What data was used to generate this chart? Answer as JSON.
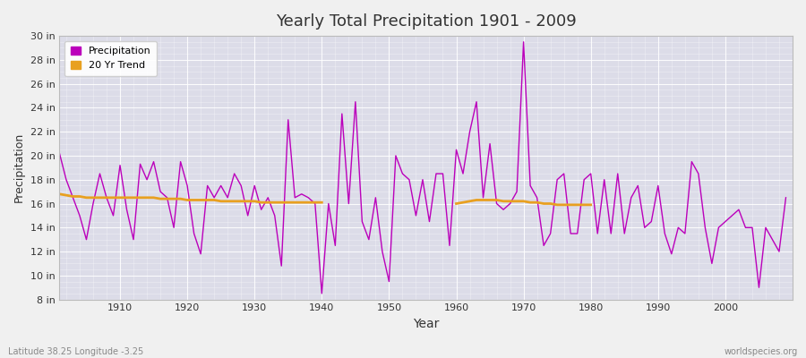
{
  "title": "Yearly Total Precipitation 1901 - 2009",
  "xlabel": "Year",
  "ylabel": "Precipitation",
  "footnote_left": "Latitude 38.25 Longitude -3.25",
  "footnote_right": "worldspecies.org",
  "ylim": [
    8,
    30
  ],
  "yticks": [
    8,
    10,
    12,
    14,
    16,
    18,
    20,
    22,
    24,
    26,
    28,
    30
  ],
  "ytick_labels": [
    "8 in",
    "10 in",
    "12 in",
    "14 in",
    "16 in",
    "18 in",
    "20 in",
    "22 in",
    "24 in",
    "26 in",
    "28 in",
    "30 in"
  ],
  "xlim": [
    1901,
    2010
  ],
  "xticks": [
    1910,
    1920,
    1930,
    1940,
    1950,
    1960,
    1970,
    1980,
    1990,
    2000
  ],
  "fig_bg_color": "#f0f0f0",
  "plot_bg_color": "#dcdce8",
  "precip_color": "#bb00bb",
  "trend_color": "#e8a020",
  "precip_linewidth": 1.0,
  "trend_linewidth": 2.0,
  "years": [
    1901,
    1902,
    1903,
    1904,
    1905,
    1906,
    1907,
    1908,
    1909,
    1910,
    1911,
    1912,
    1913,
    1914,
    1915,
    1916,
    1917,
    1918,
    1919,
    1920,
    1921,
    1922,
    1923,
    1924,
    1925,
    1926,
    1927,
    1928,
    1929,
    1930,
    1931,
    1932,
    1933,
    1934,
    1935,
    1936,
    1937,
    1938,
    1939,
    1940,
    1941,
    1942,
    1943,
    1944,
    1945,
    1946,
    1947,
    1948,
    1949,
    1950,
    1951,
    1952,
    1953,
    1954,
    1955,
    1956,
    1957,
    1958,
    1959,
    1960,
    1961,
    1962,
    1963,
    1964,
    1965,
    1966,
    1967,
    1968,
    1969,
    1970,
    1971,
    1972,
    1973,
    1974,
    1975,
    1976,
    1977,
    1978,
    1979,
    1980,
    1981,
    1982,
    1983,
    1984,
    1985,
    1986,
    1987,
    1988,
    1989,
    1990,
    1991,
    1992,
    1993,
    1994,
    1995,
    1996,
    1997,
    1998,
    1999,
    2000,
    2001,
    2002,
    2003,
    2004,
    2005,
    2006,
    2007,
    2008,
    2009
  ],
  "precip": [
    20.2,
    18.0,
    16.5,
    15.0,
    13.0,
    16.0,
    18.5,
    16.5,
    15.0,
    19.2,
    15.5,
    13.0,
    19.3,
    18.0,
    19.5,
    17.0,
    16.5,
    14.0,
    19.5,
    17.5,
    13.5,
    11.8,
    17.5,
    16.5,
    17.5,
    16.5,
    18.5,
    17.5,
    15.0,
    17.5,
    15.5,
    16.5,
    15.0,
    10.8,
    23.0,
    16.5,
    16.8,
    16.5,
    16.0,
    8.5,
    16.0,
    12.5,
    23.5,
    16.0,
    24.5,
    14.5,
    13.0,
    16.5,
    12.0,
    9.5,
    20.0,
    18.5,
    18.0,
    15.0,
    18.0,
    14.5,
    18.5,
    18.5,
    12.5,
    20.5,
    18.5,
    22.0,
    24.5,
    16.5,
    21.0,
    16.0,
    15.5,
    16.0,
    17.0,
    29.5,
    17.5,
    16.5,
    12.5,
    13.5,
    18.0,
    18.5,
    13.5,
    13.5,
    18.0,
    18.5,
    13.5,
    18.0,
    13.5,
    18.5,
    13.5,
    16.5,
    17.5,
    14.0,
    14.5,
    17.5,
    13.5,
    11.8,
    14.0,
    13.5,
    19.5,
    18.5,
    14.0,
    11.0,
    14.0,
    14.5,
    15.0,
    15.5,
    14.0,
    14.0,
    9.0,
    14.0,
    13.0,
    12.0,
    16.5
  ],
  "trend_segments": [
    {
      "years": [
        1901,
        1902,
        1903,
        1904,
        1905,
        1906,
        1907,
        1908,
        1909,
        1910,
        1911,
        1912,
        1913,
        1914,
        1915,
        1916,
        1917,
        1918,
        1919,
        1920,
        1921,
        1922,
        1923,
        1924,
        1925,
        1926,
        1927,
        1928,
        1929,
        1930,
        1931,
        1932,
        1933,
        1934,
        1935,
        1936,
        1937,
        1938,
        1939,
        1940
      ],
      "values": [
        16.8,
        16.7,
        16.6,
        16.6,
        16.5,
        16.5,
        16.5,
        16.5,
        16.5,
        16.5,
        16.5,
        16.5,
        16.5,
        16.5,
        16.5,
        16.4,
        16.4,
        16.4,
        16.4,
        16.3,
        16.3,
        16.3,
        16.3,
        16.3,
        16.2,
        16.2,
        16.2,
        16.2,
        16.2,
        16.2,
        16.1,
        16.1,
        16.1,
        16.1,
        16.1,
        16.1,
        16.1,
        16.1,
        16.1,
        16.1
      ]
    },
    {
      "years": [
        1960,
        1961,
        1962,
        1963,
        1964,
        1965,
        1966,
        1967,
        1968,
        1969,
        1970,
        1971,
        1972,
        1973,
        1974,
        1975,
        1976,
        1977,
        1978,
        1979,
        1980
      ],
      "values": [
        16.0,
        16.1,
        16.2,
        16.3,
        16.3,
        16.3,
        16.3,
        16.2,
        16.2,
        16.2,
        16.2,
        16.1,
        16.1,
        16.0,
        16.0,
        15.9,
        15.9,
        15.9,
        15.9,
        15.9,
        15.9
      ]
    }
  ]
}
